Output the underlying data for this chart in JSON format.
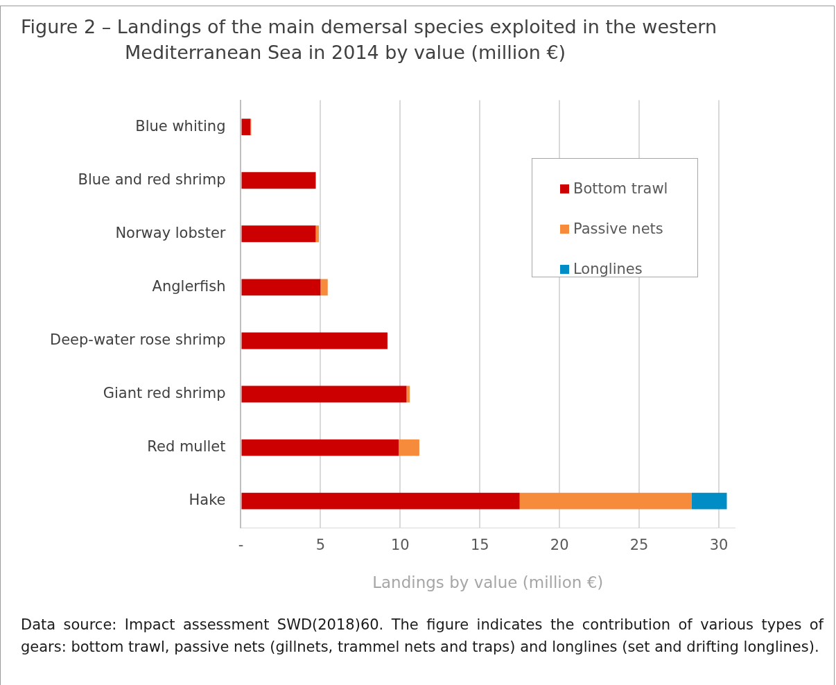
{
  "chart_data": {
    "type": "bar",
    "orientation": "horizontal",
    "stacked": true,
    "title": "Figure 2 – Landings of the main demersal species exploited in the western Mediterranean Sea in 2014 by value (million €)",
    "categories": [
      "Blue whiting",
      "Blue and red shrimp",
      "Norway lobster",
      "Anglerfish",
      "Deep-water rose shrimp",
      "Giant red shrimp",
      "Red mullet",
      "Hake"
    ],
    "series": [
      {
        "name": "Bottom trawl",
        "color": "#cc0000",
        "values": [
          0.6,
          4.7,
          4.7,
          5.0,
          9.2,
          10.4,
          9.9,
          17.5
        ]
      },
      {
        "name": "Passive nets",
        "color": "#f68b3c",
        "values": [
          0.05,
          0,
          0.2,
          0.45,
          0,
          0.2,
          1.3,
          10.8
        ]
      },
      {
        "name": "Longlines",
        "color": "#008cc4",
        "values": [
          0,
          0,
          0,
          0,
          0,
          0,
          0,
          2.2
        ]
      }
    ],
    "xlabel": "Landings by value (million €)",
    "xlim": [
      0,
      31
    ],
    "xticks": [
      {
        "value": 0,
        "label": "-"
      },
      5,
      10,
      15,
      20,
      25,
      30
    ],
    "grid": "x",
    "legend": "top right",
    "annotations": [
      "Data source: Impact assessment SWD(2018)60. The figure indicates the contribution of various types of gears: bottom trawl, passive nets (gillnets, trammel nets and traps) and longlines (set and drifting longlines)."
    ]
  }
}
